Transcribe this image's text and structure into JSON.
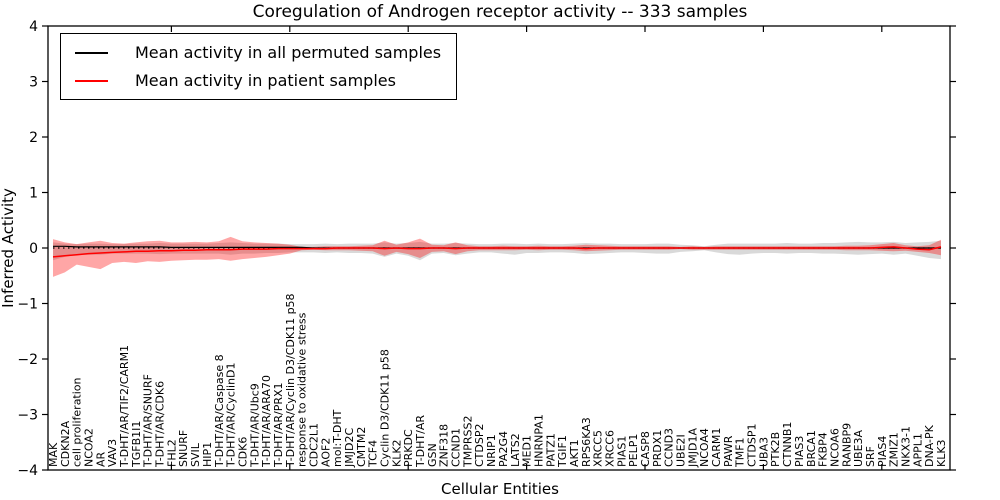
{
  "chart_data": {
    "type": "line",
    "title": "Coregulation of Androgen receptor activity -- 333 samples",
    "xlabel": "Cellular Entities",
    "ylabel": "Inferred Activity",
    "ylim": [
      -4,
      4
    ],
    "yticks": [
      4,
      3,
      2,
      1,
      0,
      -1,
      -2,
      -3,
      -4
    ],
    "grid": false,
    "legend_position": "upper left",
    "legend": [
      {
        "label": "Mean activity in all permuted samples",
        "color": "#000000"
      },
      {
        "label": "Mean activity in patient samples",
        "color": "#ff0000"
      }
    ],
    "reference_line": {
      "y": 0,
      "style": "dotted",
      "color": "#000000"
    },
    "categories": [
      "MAK",
      "CDKN2A",
      "cell proliferation",
      "NCOA2",
      "AR",
      "VAV3",
      "T-DHT/AR/TIF2/CARM1",
      "TGFB1I1",
      "T-DHT/AR/SNURF",
      "T-DHT/AR/CDK6",
      "FHL2",
      "SNURF",
      "SVIL",
      "HIP1",
      "T-DHT/AR/Caspase 8",
      "T-DHT/AR/CyclinD1",
      "CDK6",
      "T-DHT/AR/Ubc9",
      "T-DHT/AR/ARA70",
      "T-DHT/AR/PRX1",
      "T-DHT/AR/Cyclin D3/CDK11 p58",
      "response to oxidative stress",
      "CDC2L1",
      "AOF2",
      "mol:T-DHT",
      "JMJD2C",
      "CMTM2",
      "TCF4",
      "Cyclin D3/CDK11 p58",
      "KLK2",
      "PRKDC",
      "T-DHT/AR",
      "GSN",
      "ZNF318",
      "CCND1",
      "TMPRSS2",
      "CTDSP2",
      "NRIP1",
      "PA2G4",
      "LATS2",
      "MED1",
      "HNRNPA1",
      "PATZ1",
      "TGIF1",
      "AKT1",
      "RPS6KA3",
      "XRCC5",
      "XRCC6",
      "PIAS1",
      "PELP1",
      "CASP8",
      "PRDX1",
      "CCND3",
      "UBE2I",
      "JMJD1A",
      "NCOA4",
      "CARM1",
      "PAWR",
      "TMF1",
      "CTDSP1",
      "UBA3",
      "PTK2B",
      "CTNNB1",
      "PIAS3",
      "BRCA1",
      "FKBP4",
      "NCOA6",
      "RANBP9",
      "UBE3A",
      "SRF",
      "PIAS4",
      "ZMIZ1",
      "NKX3-1",
      "APPL1",
      "DNA-PK",
      "KLK3"
    ],
    "series": [
      {
        "name": "Mean activity in all permuted samples",
        "color": "#000000",
        "style": "solid",
        "width": 1.2,
        "values": [
          0.03,
          0.03,
          0.02,
          0.02,
          0.02,
          0.02,
          0.02,
          0.02,
          0.02,
          0.02,
          0.01,
          0.01,
          0.01,
          0.01,
          0.01,
          0.01,
          0.01,
          0.01,
          0.01,
          0.01,
          0.01,
          0.01,
          0,
          0,
          0,
          0,
          0,
          0,
          0,
          0,
          0,
          0,
          0,
          0,
          0,
          0,
          0,
          0,
          0,
          0,
          0,
          0,
          0,
          0,
          0,
          0,
          0,
          0,
          0,
          0,
          0,
          0,
          0,
          0,
          0,
          0,
          0,
          0,
          0,
          0,
          0,
          0,
          0,
          0,
          0,
          0,
          0,
          0,
          0,
          0,
          0,
          0,
          0,
          0,
          0,
          0
        ]
      },
      {
        "name": "Mean activity in patient samples",
        "color": "#ff0000",
        "style": "solid",
        "width": 1.5,
        "values": [
          -0.16,
          -0.14,
          -0.12,
          -0.1,
          -0.09,
          -0.08,
          -0.07,
          -0.06,
          -0.06,
          -0.05,
          -0.05,
          -0.04,
          -0.04,
          -0.03,
          -0.03,
          -0.03,
          -0.02,
          -0.02,
          -0.02,
          -0.01,
          -0.01,
          -0.01,
          -0.01,
          -0.01,
          0,
          0,
          0,
          0,
          -0.01,
          0,
          -0.01,
          -0.01,
          0,
          0,
          -0.01,
          0,
          0,
          0,
          0,
          0,
          0,
          0,
          0,
          0,
          0,
          -0.01,
          0,
          0,
          0,
          0,
          0,
          0,
          0,
          0,
          0,
          0,
          0,
          0,
          0,
          0,
          0,
          0,
          0,
          0,
          0,
          0,
          0,
          0,
          0,
          0,
          0.01,
          0.02,
          0,
          -0.02,
          -0.03,
          0.02
        ]
      }
    ],
    "bands": [
      {
        "name": "permuted samples band",
        "color": "#000000",
        "opacity": 0.15,
        "upper": [
          0.1,
          0.08,
          0.07,
          0.08,
          0.08,
          0.07,
          0.07,
          0.08,
          0.08,
          0.09,
          0.08,
          0.08,
          0.08,
          0.08,
          0.09,
          0.1,
          0.09,
          0.08,
          0.08,
          0.08,
          0.07,
          0.07,
          0.07,
          0.08,
          0.07,
          0.08,
          0.08,
          0.08,
          0.1,
          0.08,
          0.09,
          0.11,
          0.08,
          0.08,
          0.09,
          0.08,
          0.07,
          0.07,
          0.08,
          0.08,
          0.07,
          0.08,
          0.07,
          0.07,
          0.08,
          0.09,
          0.08,
          0.08,
          0.07,
          0.07,
          0.07,
          0.08,
          0.08,
          0.06,
          0.05,
          0.03,
          0.06,
          0.08,
          0.08,
          0.08,
          0.08,
          0.08,
          0.09,
          0.08,
          0.08,
          0.09,
          0.09,
          0.1,
          0.11,
          0.1,
          0.1,
          0.11,
          0.09,
          0.1,
          0.11,
          0.13
        ],
        "lower": [
          -0.22,
          -0.16,
          -0.12,
          -0.12,
          -0.12,
          -0.1,
          -0.1,
          -0.1,
          -0.1,
          -0.11,
          -0.1,
          -0.1,
          -0.1,
          -0.1,
          -0.1,
          -0.12,
          -0.1,
          -0.1,
          -0.09,
          -0.09,
          -0.08,
          -0.08,
          -0.08,
          -0.09,
          -0.08,
          -0.09,
          -0.09,
          -0.1,
          -0.16,
          -0.1,
          -0.14,
          -0.22,
          -0.1,
          -0.09,
          -0.13,
          -0.1,
          -0.08,
          -0.08,
          -0.1,
          -0.12,
          -0.09,
          -0.09,
          -0.08,
          -0.08,
          -0.09,
          -0.11,
          -0.1,
          -0.09,
          -0.08,
          -0.08,
          -0.09,
          -0.1,
          -0.1,
          -0.07,
          -0.06,
          -0.04,
          -0.08,
          -0.11,
          -0.12,
          -0.1,
          -0.09,
          -0.09,
          -0.1,
          -0.09,
          -0.09,
          -0.1,
          -0.1,
          -0.11,
          -0.12,
          -0.11,
          -0.1,
          -0.12,
          -0.1,
          -0.14,
          -0.18,
          -0.2
        ]
      },
      {
        "name": "patient samples band",
        "color": "#ff0000",
        "opacity": 0.35,
        "upper": [
          0.16,
          0.1,
          0.07,
          0.1,
          0.13,
          0.09,
          0.08,
          0.1,
          0.12,
          0.13,
          0.1,
          0.1,
          0.11,
          0.1,
          0.12,
          0.2,
          0.12,
          0.1,
          0.09,
          0.08,
          0.06,
          0.02,
          0.02,
          0.03,
          0.03,
          0.03,
          0.04,
          0.05,
          0.13,
          0.06,
          0.1,
          0.17,
          0.06,
          0.05,
          0.1,
          0.05,
          0.03,
          0.03,
          0.04,
          0.03,
          0.03,
          0.04,
          0.03,
          0.03,
          0.04,
          0.06,
          0.05,
          0.04,
          0.03,
          0.03,
          0.03,
          0.03,
          0.03,
          0.02,
          0.03,
          0.02,
          0.03,
          0.03,
          0.03,
          0.03,
          0.03,
          0.03,
          0.03,
          0.03,
          0.03,
          0.03,
          0.03,
          0.04,
          0.04,
          0.05,
          0.07,
          0.09,
          0.05,
          0.03,
          0.05,
          0.15
        ],
        "lower": [
          -0.52,
          -0.44,
          -0.3,
          -0.34,
          -0.38,
          -0.27,
          -0.25,
          -0.27,
          -0.24,
          -0.25,
          -0.23,
          -0.22,
          -0.21,
          -0.21,
          -0.2,
          -0.23,
          -0.2,
          -0.18,
          -0.16,
          -0.13,
          -0.1,
          -0.04,
          -0.03,
          -0.04,
          -0.04,
          -0.04,
          -0.05,
          -0.06,
          -0.14,
          -0.07,
          -0.11,
          -0.18,
          -0.07,
          -0.06,
          -0.11,
          -0.06,
          -0.04,
          -0.04,
          -0.04,
          -0.04,
          -0.03,
          -0.04,
          -0.03,
          -0.03,
          -0.04,
          -0.06,
          -0.05,
          -0.04,
          -0.03,
          -0.03,
          -0.03,
          -0.03,
          -0.03,
          -0.02,
          -0.03,
          -0.03,
          -0.03,
          -0.03,
          -0.03,
          -0.03,
          -0.03,
          -0.03,
          -0.03,
          -0.03,
          -0.03,
          -0.03,
          -0.03,
          -0.04,
          -0.04,
          -0.04,
          -0.05,
          -0.06,
          -0.05,
          -0.07,
          -0.09,
          -0.13
        ]
      }
    ]
  }
}
